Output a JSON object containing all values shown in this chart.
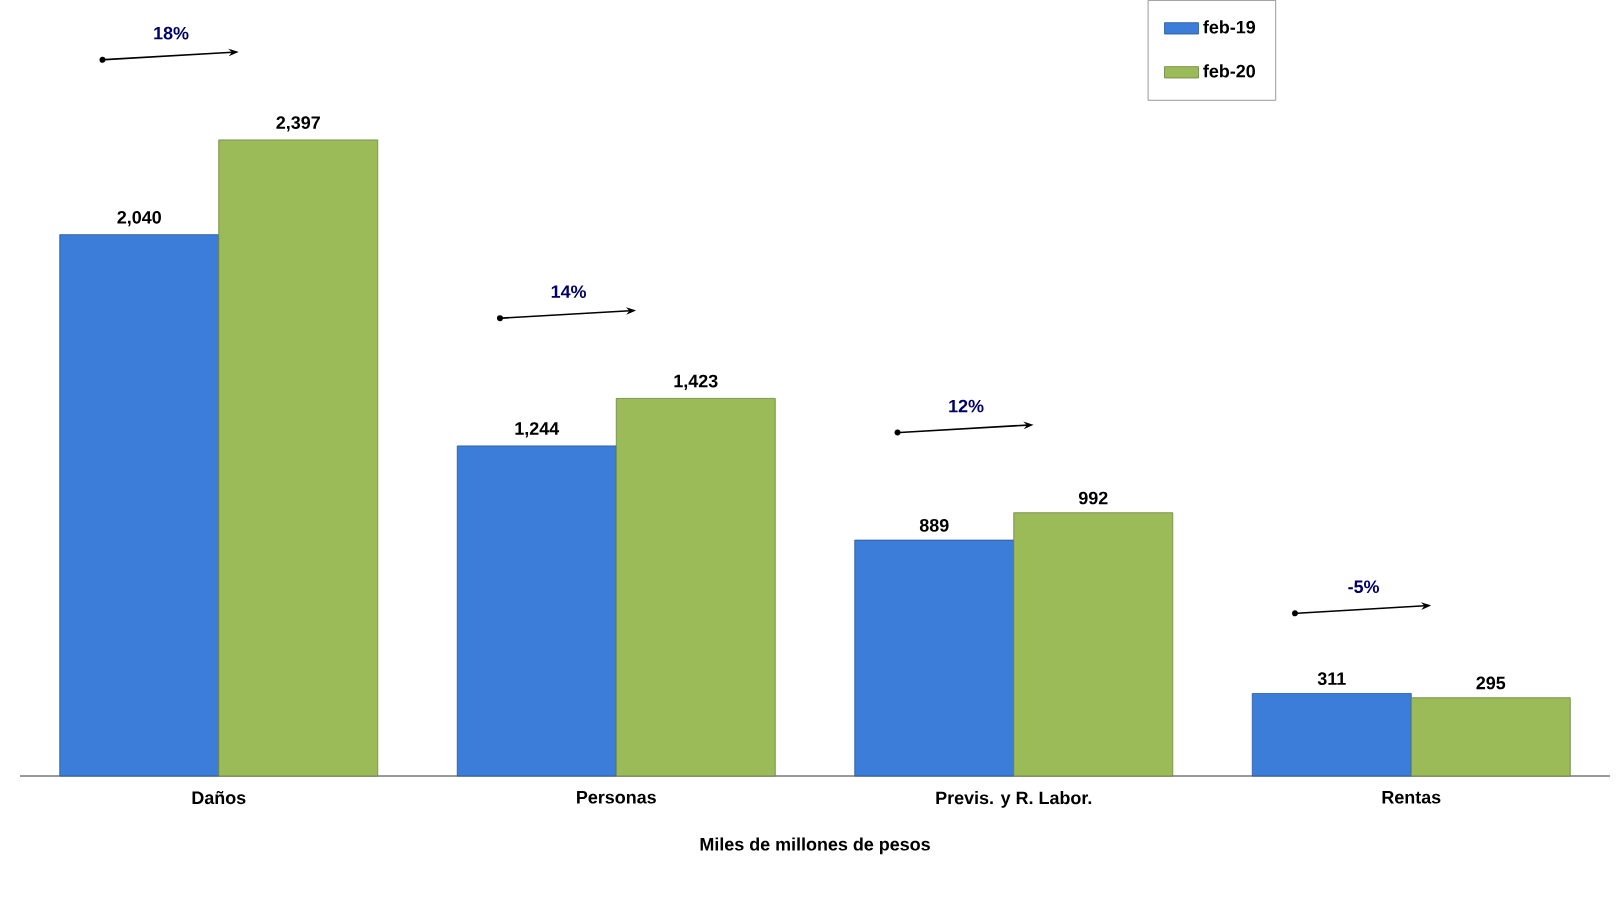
{
  "chart_data": {
    "type": "bar",
    "xlabel": "Miles de millones de pesos",
    "categories": [
      "Daños",
      "Personas",
      "Previs. y R. Labor.",
      "Rentas"
    ],
    "series": [
      {
        "name": "feb-19",
        "color": "#3b7dd8",
        "values": [
          2040,
          1244,
          889,
          311
        ],
        "value_labels": [
          "2,040",
          "1,244",
          "889",
          "311"
        ]
      },
      {
        "name": "feb-20",
        "color": "#9bbb59",
        "values": [
          2397,
          1423,
          992,
          295
        ],
        "value_labels": [
          "2,397",
          "1,423",
          "992",
          "295"
        ]
      }
    ],
    "annotations": [
      "18%",
      "14%",
      "12%",
      "-5%"
    ],
    "legend": "top right",
    "grid": false
  }
}
